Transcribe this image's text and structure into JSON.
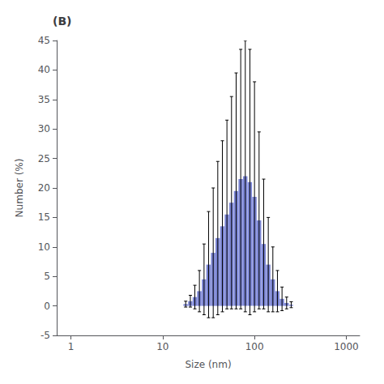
{
  "chart_data": {
    "type": "bar",
    "title": "(B)",
    "xlabel": "Size (nm)",
    "ylabel": "Number (%)",
    "log": "x",
    "x": [
      17.8,
      20.0,
      22.4,
      25.1,
      28.2,
      31.6,
      35.5,
      39.8,
      44.7,
      50.1,
      56.2,
      63.1,
      70.8,
      79.4,
      89.1,
      100.0,
      112.2,
      125.9,
      141.3,
      158.5,
      177.8,
      199.5,
      223.9,
      251.2
    ],
    "values": [
      0.3,
      0.8,
      1.5,
      2.5,
      4.5,
      7.0,
      9.0,
      11.5,
      13.5,
      15.5,
      17.5,
      19.5,
      21.5,
      22.0,
      21.0,
      18.5,
      14.5,
      10.5,
      7.0,
      4.5,
      2.5,
      1.2,
      0.5,
      0.2
    ],
    "errors": [
      0.5,
      1.0,
      2.0,
      3.5,
      6.0,
      9.0,
      11.0,
      13.0,
      14.5,
      16.0,
      18.0,
      20.0,
      22.0,
      23.0,
      22.5,
      19.5,
      15.0,
      11.0,
      8.0,
      5.5,
      3.5,
      2.0,
      1.0,
      0.5
    ],
    "color": "#7b85d4",
    "xlim": [
      0.7,
      1400
    ],
    "xticks": [
      1,
      10,
      100,
      1000
    ],
    "ylim": [
      -5,
      45
    ],
    "yticks": [
      -5,
      0,
      5,
      10,
      15,
      20,
      25,
      30,
      35,
      40,
      45
    ],
    "grid": false
  }
}
